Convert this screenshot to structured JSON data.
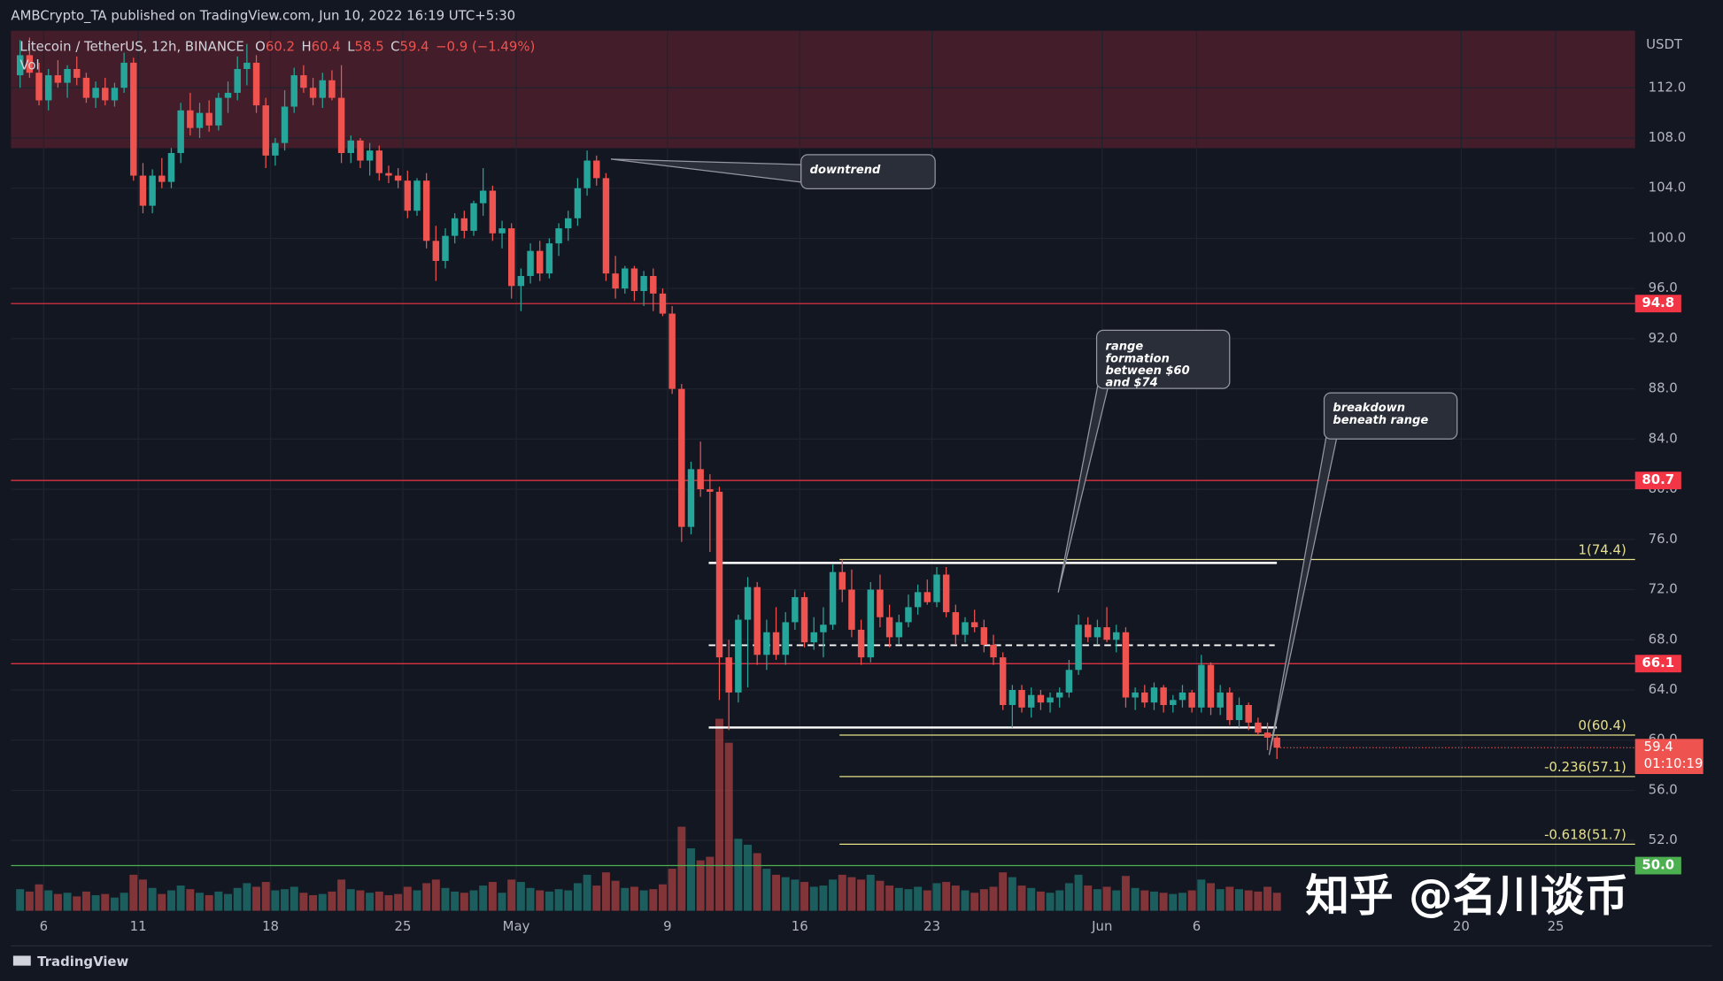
{
  "header": "AMBCrypto_TA published on TradingView.com, Jun 10, 2022 16:19 UTC+5:30",
  "footer": "TradingView",
  "watermark": "知乎 @名川谈币",
  "chart_data": {
    "type": "candlestick",
    "symbol": "Litecoin / TetherUS, 12h, BINANCE",
    "ohlc_keys": [
      "O",
      "H",
      "L",
      "C"
    ],
    "change_text": "−0.9 (−1.49%)",
    "volume_label": "Vol",
    "axis_unit": "USDT",
    "countdown": "01:10:19",
    "up_color": "#26a69a",
    "down_color": "#ef5350",
    "grid": true,
    "ylim": [
      43.95,
      116.55
    ],
    "yticks": [
      {
        "value": 52,
        "label": "52.0"
      },
      {
        "value": 56,
        "label": "56.0"
      },
      {
        "value": 60,
        "label": "60.0"
      },
      {
        "value": 64,
        "label": "64.0"
      },
      {
        "value": 68,
        "label": "68.0"
      },
      {
        "value": 72,
        "label": "72.0"
      },
      {
        "value": 76,
        "label": "76.0"
      },
      {
        "value": 80,
        "label": "80.0"
      },
      {
        "value": 84,
        "label": "84.0"
      },
      {
        "value": 88,
        "label": "88.0"
      },
      {
        "value": 92,
        "label": "92.0"
      },
      {
        "value": 96,
        "label": "96.0"
      },
      {
        "value": 100,
        "label": "100.0"
      },
      {
        "value": 104,
        "label": "104.0"
      },
      {
        "value": 108,
        "label": "108.0"
      },
      {
        "value": 112,
        "label": "112.0"
      }
    ],
    "xlim": [
      0,
      171.4
    ],
    "xticks": [
      {
        "value": 3,
        "label": "6"
      },
      {
        "value": 13,
        "label": "11"
      },
      {
        "value": 27,
        "label": "18"
      },
      {
        "value": 41,
        "label": "25"
      },
      {
        "value": 53,
        "label": "May"
      },
      {
        "value": 69,
        "label": "9"
      },
      {
        "value": 83,
        "label": "16"
      },
      {
        "value": 97,
        "label": "23"
      },
      {
        "value": 115,
        "label": "Jun"
      },
      {
        "value": 125,
        "label": "6"
      },
      {
        "value": 153,
        "label": "20"
      },
      {
        "value": 163,
        "label": "25"
      }
    ],
    "levels": [
      {
        "price": 94.8,
        "color": "#f23645"
      },
      {
        "price": 80.7,
        "color": "#f23645"
      },
      {
        "price": 66.1,
        "color": "#f23645"
      },
      {
        "price": {
          "value": 50,
          "label": "50.0"
        },
        "color": "#4caf50"
      }
    ],
    "fib_color": "#e6e18a",
    "fib_levels": [
      {
        "label": "1(74.4)",
        "value": 74.4
      },
      {
        "label": "0(60.4)",
        "value": 60.4
      },
      {
        "label": "-0.236(57.1)",
        "value": 57.1
      },
      {
        "label": "-0.618(51.7)",
        "value": 51.7
      }
    ],
    "annotations": [
      "downtrend",
      "range formation between $60 and $74",
      "breakdown beneath range"
    ],
    "candles": [
      [
        113.0,
        115.8,
        112.0,
        114.6,
        180
      ],
      [
        114.6,
        116.0,
        112.8,
        113.2,
        160
      ],
      [
        113.2,
        114.0,
        110.6,
        111.0,
        220
      ],
      [
        111.0,
        113.5,
        110.2,
        113.0,
        170
      ],
      [
        113.0,
        114.2,
        112.0,
        112.4,
        140
      ],
      [
        112.4,
        113.8,
        111.2,
        113.5,
        150
      ],
      [
        113.5,
        114.5,
        112.2,
        112.8,
        120
      ],
      [
        112.8,
        113.2,
        110.8,
        111.2,
        160
      ],
      [
        111.2,
        112.5,
        110.4,
        112.0,
        130
      ],
      [
        112.0,
        112.8,
        110.6,
        111.0,
        140
      ],
      [
        111.0,
        112.4,
        110.5,
        112.0,
        110
      ],
      [
        112.0,
        114.8,
        111.6,
        114.0,
        150
      ],
      [
        114.0,
        114.4,
        104.6,
        105.0,
        300
      ],
      [
        105.0,
        106.0,
        102.0,
        102.6,
        260
      ],
      [
        102.6,
        105.5,
        102.0,
        105.0,
        190
      ],
      [
        105.0,
        106.4,
        104.0,
        104.5,
        140
      ],
      [
        104.5,
        107.2,
        104.0,
        106.8,
        170
      ],
      [
        106.8,
        110.8,
        106.0,
        110.2,
        210
      ],
      [
        110.2,
        111.6,
        108.2,
        108.8,
        180
      ],
      [
        108.8,
        110.8,
        108.0,
        110.0,
        150
      ],
      [
        110.0,
        111.0,
        108.5,
        109.0,
        130
      ],
      [
        109.0,
        111.6,
        108.6,
        111.2,
        160
      ],
      [
        111.2,
        112.5,
        110.0,
        111.6,
        140
      ],
      [
        111.6,
        114.5,
        111.0,
        113.5,
        190
      ],
      [
        113.5,
        115.5,
        112.2,
        114.0,
        230
      ],
      [
        114.0,
        114.6,
        110.0,
        110.6,
        200
      ],
      [
        110.6,
        111.2,
        105.6,
        106.6,
        240
      ],
      [
        106.6,
        108.0,
        105.8,
        107.6,
        170
      ],
      [
        107.6,
        111.8,
        107.0,
        110.5,
        180
      ],
      [
        110.5,
        113.6,
        110.0,
        113.0,
        200
      ],
      [
        113.0,
        113.8,
        111.6,
        112.0,
        150
      ],
      [
        112.0,
        112.8,
        110.6,
        111.2,
        130
      ],
      [
        111.2,
        113.2,
        110.4,
        112.6,
        140
      ],
      [
        112.6,
        113.4,
        111.0,
        111.2,
        160
      ],
      [
        111.2,
        113.8,
        106.0,
        106.8,
        260
      ],
      [
        106.8,
        108.2,
        106.0,
        107.8,
        180
      ],
      [
        107.8,
        108.0,
        105.6,
        106.2,
        170
      ],
      [
        106.2,
        107.6,
        105.0,
        107.0,
        150
      ],
      [
        107.0,
        107.4,
        104.6,
        105.2,
        160
      ],
      [
        105.2,
        105.8,
        104.4,
        105.0,
        130
      ],
      [
        105.0,
        105.6,
        104.0,
        104.6,
        140
      ],
      [
        104.6,
        105.4,
        101.6,
        102.2,
        200
      ],
      [
        102.2,
        104.8,
        101.8,
        104.6,
        170
      ],
      [
        104.6,
        105.2,
        99.2,
        99.8,
        230
      ],
      [
        99.8,
        101.0,
        96.6,
        98.2,
        260
      ],
      [
        98.2,
        100.8,
        97.6,
        100.2,
        190
      ],
      [
        100.2,
        102.0,
        99.6,
        101.6,
        160
      ],
      [
        101.6,
        102.2,
        100.0,
        100.6,
        150
      ],
      [
        100.6,
        103.0,
        100.2,
        102.8,
        170
      ],
      [
        102.8,
        105.6,
        101.8,
        103.8,
        210
      ],
      [
        103.8,
        104.2,
        99.8,
        100.4,
        240
      ],
      [
        100.4,
        101.4,
        99.2,
        100.8,
        150
      ],
      [
        100.8,
        101.2,
        95.2,
        96.2,
        260
      ],
      [
        96.2,
        97.6,
        94.2,
        97.0,
        240
      ],
      [
        97.0,
        99.6,
        96.4,
        99.0,
        190
      ],
      [
        99.0,
        99.8,
        96.6,
        97.2,
        170
      ],
      [
        97.2,
        100.0,
        96.8,
        99.6,
        160
      ],
      [
        99.6,
        101.2,
        98.6,
        100.8,
        180
      ],
      [
        100.8,
        102.2,
        99.8,
        101.6,
        170
      ],
      [
        101.6,
        104.8,
        101.0,
        104.0,
        230
      ],
      [
        104.0,
        107.0,
        103.4,
        106.2,
        300
      ],
      [
        106.2,
        106.6,
        104.2,
        104.8,
        210
      ],
      [
        104.8,
        105.2,
        96.6,
        97.2,
        320
      ],
      [
        97.2,
        98.6,
        95.2,
        96.0,
        250
      ],
      [
        96.0,
        97.8,
        95.6,
        97.6,
        190
      ],
      [
        97.6,
        97.8,
        95.0,
        95.8,
        200
      ],
      [
        95.8,
        97.4,
        94.6,
        97.0,
        170
      ],
      [
        97.0,
        97.6,
        94.2,
        95.6,
        180
      ],
      [
        95.6,
        96.0,
        93.8,
        94.0,
        220
      ],
      [
        94.0,
        94.6,
        87.6,
        88.0,
        350
      ],
      [
        88.0,
        88.4,
        75.8,
        77.0,
        700
      ],
      [
        77.0,
        82.2,
        76.4,
        81.6,
        520
      ],
      [
        81.6,
        83.8,
        79.4,
        80.0,
        420
      ],
      [
        80.0,
        81.2,
        75.0,
        79.8,
        450
      ],
      [
        79.8,
        80.2,
        63.2,
        66.6,
        1600
      ],
      [
        66.6,
        68.0,
        60.8,
        63.8,
        1400
      ],
      [
        63.8,
        70.0,
        63.0,
        69.6,
        600
      ],
      [
        69.6,
        73.0,
        64.2,
        72.2,
        550
      ],
      [
        72.2,
        72.6,
        66.0,
        66.8,
        480
      ],
      [
        66.8,
        69.6,
        65.6,
        68.6,
        350
      ],
      [
        68.6,
        70.6,
        66.4,
        66.8,
        300
      ],
      [
        66.8,
        70.2,
        66.0,
        69.4,
        280
      ],
      [
        69.4,
        72.0,
        68.8,
        71.4,
        260
      ],
      [
        71.4,
        71.8,
        67.4,
        67.8,
        240
      ],
      [
        67.8,
        69.8,
        67.2,
        68.6,
        200
      ],
      [
        68.6,
        70.6,
        66.6,
        69.2,
        210
      ],
      [
        69.2,
        74.0,
        68.8,
        73.4,
        260
      ],
      [
        73.4,
        74.4,
        71.0,
        72.0,
        300
      ],
      [
        72.0,
        73.6,
        68.2,
        68.8,
        280
      ],
      [
        68.8,
        69.6,
        66.0,
        66.6,
        260
      ],
      [
        66.6,
        72.6,
        66.2,
        72.0,
        300
      ],
      [
        72.0,
        73.2,
        69.0,
        69.8,
        250
      ],
      [
        69.8,
        70.8,
        67.4,
        68.2,
        210
      ],
      [
        68.2,
        70.0,
        67.6,
        69.4,
        190
      ],
      [
        69.4,
        71.6,
        69.0,
        70.6,
        180
      ],
      [
        70.6,
        72.4,
        70.0,
        71.8,
        200
      ],
      [
        71.8,
        72.8,
        70.8,
        71.0,
        170
      ],
      [
        71.0,
        73.8,
        70.6,
        73.2,
        230
      ],
      [
        73.2,
        73.8,
        69.8,
        70.2,
        240
      ],
      [
        70.2,
        70.8,
        67.6,
        68.4,
        210
      ],
      [
        68.4,
        69.8,
        67.8,
        69.4,
        170
      ],
      [
        69.4,
        70.4,
        68.6,
        69.0,
        150
      ],
      [
        69.0,
        69.6,
        67.0,
        67.6,
        180
      ],
      [
        67.6,
        68.4,
        66.0,
        66.6,
        200
      ],
      [
        66.6,
        67.0,
        62.4,
        62.8,
        320
      ],
      [
        62.8,
        64.4,
        61.0,
        64.0,
        280
      ],
      [
        64.0,
        64.4,
        62.2,
        62.6,
        210
      ],
      [
        62.6,
        64.2,
        61.8,
        63.6,
        190
      ],
      [
        63.6,
        64.0,
        62.4,
        63.0,
        160
      ],
      [
        63.0,
        63.8,
        62.2,
        63.4,
        150
      ],
      [
        63.4,
        64.2,
        62.6,
        63.8,
        170
      ],
      [
        63.8,
        66.4,
        63.4,
        65.6,
        230
      ],
      [
        65.6,
        70.0,
        65.2,
        69.2,
        300
      ],
      [
        69.2,
        69.8,
        67.8,
        68.2,
        210
      ],
      [
        68.2,
        69.6,
        67.6,
        69.0,
        180
      ],
      [
        69.0,
        70.6,
        67.8,
        68.0,
        200
      ],
      [
        68.0,
        69.2,
        67.0,
        68.6,
        170
      ],
      [
        68.6,
        69.0,
        62.6,
        63.4,
        290
      ],
      [
        63.4,
        64.2,
        62.4,
        63.8,
        190
      ],
      [
        63.8,
        64.4,
        62.6,
        63.0,
        170
      ],
      [
        63.0,
        64.6,
        62.4,
        64.2,
        160
      ],
      [
        64.2,
        64.4,
        62.2,
        62.8,
        150
      ],
      [
        62.8,
        63.6,
        62.2,
        63.2,
        140
      ],
      [
        63.2,
        64.4,
        62.6,
        63.8,
        150
      ],
      [
        63.8,
        64.0,
        62.2,
        62.6,
        170
      ],
      [
        62.6,
        66.8,
        62.2,
        66.0,
        260
      ],
      [
        66.0,
        66.2,
        62.0,
        62.6,
        230
      ],
      [
        62.6,
        64.4,
        62.0,
        63.8,
        180
      ],
      [
        63.8,
        64.2,
        61.2,
        61.6,
        200
      ],
      [
        61.6,
        63.4,
        61.0,
        62.8,
        180
      ],
      [
        62.8,
        63.0,
        60.8,
        61.4,
        170
      ],
      [
        61.4,
        61.8,
        60.4,
        60.6,
        160
      ],
      [
        60.6,
        61.4,
        59.2,
        60.2,
        200
      ],
      [
        60.2,
        60.4,
        58.5,
        59.4,
        150
      ]
    ]
  }
}
